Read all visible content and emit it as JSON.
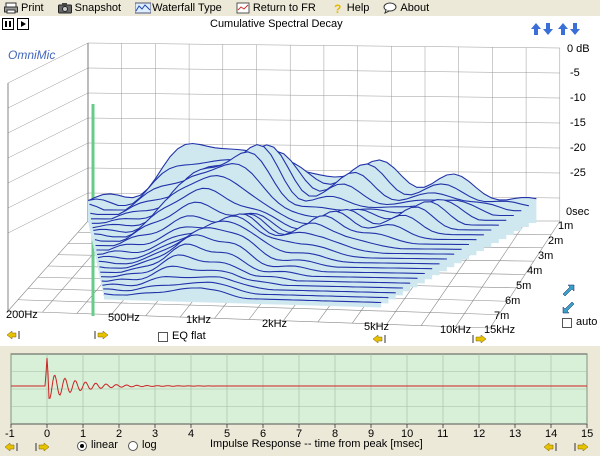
{
  "toolbar": {
    "print": "Print",
    "snapshot": "Snapshot",
    "waterfall_type": "Waterfall Type",
    "return_fr": "Return to FR",
    "help": "Help",
    "about": "About"
  },
  "plot": {
    "title": "Cumulative Spectral Decay",
    "brand": "OmniMic",
    "db_ticks": [
      "0 dB",
      "-5",
      "-10",
      "-15",
      "-20",
      "-25"
    ],
    "time_ticks": [
      "0sec",
      "1m",
      "2m",
      "3m",
      "4m",
      "5m",
      "6m",
      "7m"
    ],
    "freq_ticks": [
      "200Hz",
      "500Hz",
      "1kHz",
      "2kHz",
      "5kHz",
      "10kHz",
      "15kHz"
    ],
    "eq_flat": "EQ flat",
    "auto": "auto"
  },
  "impulse": {
    "xlabel": "Impulse Response  -- time from peak [msec]",
    "x_ticks": [
      "-1",
      "0",
      "1",
      "2",
      "3",
      "4",
      "5",
      "6",
      "7",
      "8",
      "9",
      "10",
      "11",
      "12",
      "13",
      "14",
      "15"
    ],
    "linear": "linear",
    "log": "log",
    "mode": "linear"
  },
  "colors": {
    "surface_fill": "#cfe8f0",
    "surface_line": "#2233aa",
    "impulse_bg": "#d8efd8",
    "impulse_line": "#cc2222"
  }
}
